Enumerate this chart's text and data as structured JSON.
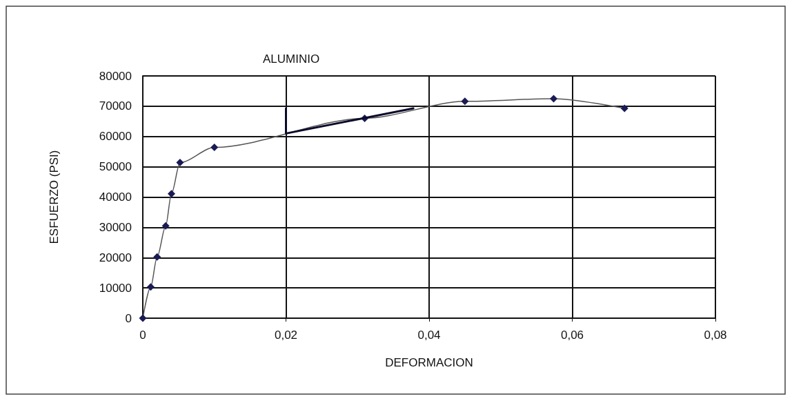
{
  "chart_data": {
    "type": "line",
    "title": "ALUMINIO",
    "xlabel": "DEFORMACION",
    "ylabel": "ESFUERZO (PSI)",
    "xlim": [
      0,
      0.08
    ],
    "xticks": [
      0,
      {
        "value": 0.02,
        "label": "0,02"
      },
      {
        "value": 0.04,
        "label": "0,04"
      },
      {
        "value": 0.06,
        "label": "0,06"
      },
      {
        "value": 0.08,
        "label": "0,08"
      }
    ],
    "ylim": [
      0,
      80000
    ],
    "yticks": [
      0,
      10000,
      20000,
      30000,
      40000,
      50000,
      60000,
      70000,
      80000
    ],
    "grid": true,
    "marker": "diamond",
    "line_style": "solid",
    "series": [
      {
        "color": "#1a1a55",
        "x": [
          0,
          0.0011,
          0.002,
          0.0032,
          0.004,
          0.0052,
          0.01,
          0.031,
          0.045,
          0.0574,
          0.0673
        ],
        "values": [
          0,
          10300,
          20200,
          30500,
          41100,
          51400,
          56400,
          66000,
          71600,
          72500,
          69300
        ]
      },
      {
        "type": "line",
        "marker": "none",
        "color": "#0a0a2a",
        "x": [
          0.02,
          0.02,
          0.0378
        ],
        "values": [
          69300,
          61000,
          69300
        ]
      }
    ]
  }
}
